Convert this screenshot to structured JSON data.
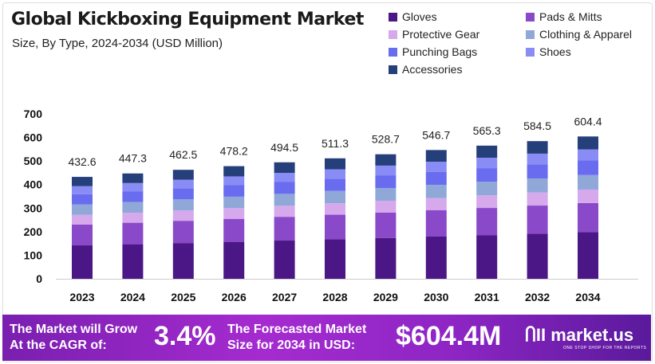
{
  "chart_data": {
    "type": "bar",
    "stacked": true,
    "title": "Global Kickboxing Equipment Market",
    "subtitle": "Size, By Type, 2024-2034 (USD Million)",
    "categories": [
      "2023",
      "2024",
      "2025",
      "2026",
      "2027",
      "2028",
      "2029",
      "2030",
      "2031",
      "2032",
      "2034"
    ],
    "totals": [
      "432.6",
      "447.3",
      "462.5",
      "478.2",
      "494.5",
      "511.3",
      "528.7",
      "546.7",
      "565.3",
      "584.5",
      "604.4"
    ],
    "ylim": [
      0,
      700
    ],
    "yticks": [
      "0",
      "100",
      "200",
      "300",
      "400",
      "500",
      "600",
      "700"
    ],
    "legend_position": "top-right",
    "grid": false,
    "series": [
      {
        "name": "Gloves",
        "color": "#4b1685",
        "values": [
          141.9,
          146.7,
          151.7,
          156.8,
          162.2,
          167.7,
          173.4,
          179.3,
          185.4,
          191.7,
          198.2
        ]
      },
      {
        "name": "Pads & Mitts",
        "color": "#8a49c8",
        "values": [
          88.3,
          91.2,
          94.4,
          97.6,
          100.9,
          104.3,
          107.9,
          111.5,
          115.3,
          119.2,
          123.3
        ]
      },
      {
        "name": "Protective Gear",
        "color": "#d6a8ec",
        "values": [
          41.1,
          42.5,
          43.9,
          45.4,
          47.0,
          48.6,
          50.2,
          51.9,
          53.7,
          55.5,
          57.4
        ]
      },
      {
        "name": "Clothing & Apparel",
        "color": "#8fa8d8",
        "values": [
          44.1,
          45.6,
          47.2,
          48.8,
          50.4,
          52.2,
          53.9,
          55.8,
          57.7,
          59.6,
          61.6
        ]
      },
      {
        "name": "Punching Bags",
        "color": "#6a6cf0",
        "values": [
          44.1,
          45.6,
          47.2,
          48.8,
          50.4,
          52.2,
          53.9,
          55.8,
          57.7,
          59.6,
          61.6
        ]
      },
      {
        "name": "Shoes",
        "color": "#8a8cf5",
        "values": [
          33.7,
          34.9,
          36.1,
          37.3,
          38.6,
          39.9,
          41.2,
          42.6,
          44.1,
          45.6,
          47.1
        ]
      },
      {
        "name": "Accessories",
        "color": "#253f7a",
        "values": [
          39.4,
          40.7,
          42.1,
          43.5,
          45.0,
          46.5,
          48.1,
          49.7,
          51.4,
          53.2,
          55.0
        ]
      }
    ]
  },
  "banner": {
    "cagr_label": "The Market will Grow At the CAGR of:",
    "cagr": "3.4%",
    "forecast_label": "The Forecasted Market Size for 2034 in USD:",
    "forecast": "$604.4M",
    "logo": "market.us",
    "tagline": "ONE STOP SHOP FOR THE REPORTS"
  }
}
